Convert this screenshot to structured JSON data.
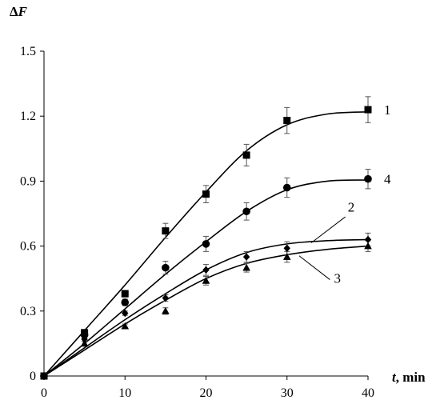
{
  "chart_data": {
    "type": "scatter",
    "xlabel_var": "t",
    "xlabel_unit": ", min",
    "ylabel_delta": "Δ",
    "ylabel_var": "F",
    "xlim": [
      0,
      40
    ],
    "ylim": [
      0,
      1.5
    ],
    "xticks": [
      0,
      10,
      20,
      30,
      40
    ],
    "yticks": [
      0,
      0.3,
      0.6,
      0.9,
      1.2,
      1.5
    ],
    "xtick_labels": [
      "0",
      "10",
      "20",
      "30",
      "40"
    ],
    "ytick_labels": [
      "0",
      "0.3",
      "0.6",
      "0.9",
      "1.2",
      "1.5"
    ],
    "grid": false,
    "legend": "none",
    "series": [
      {
        "label": "1",
        "marker": "square",
        "points": [
          [
            0,
            0
          ],
          [
            5,
            0.2
          ],
          [
            10,
            0.38
          ],
          [
            15,
            0.67
          ],
          [
            20,
            0.84
          ],
          [
            25,
            1.02
          ],
          [
            30,
            1.18
          ],
          [
            40,
            1.23
          ]
        ],
        "errors": [
          0,
          0.015,
          0.015,
          0.035,
          0.04,
          0.05,
          0.06,
          0.06
        ],
        "fit": [
          [
            0,
            0
          ],
          [
            5,
            0.21
          ],
          [
            10,
            0.42
          ],
          [
            15,
            0.64
          ],
          [
            20,
            0.85
          ],
          [
            25,
            1.04
          ],
          [
            30,
            1.16
          ],
          [
            35,
            1.21
          ],
          [
            40,
            1.22
          ]
        ]
      },
      {
        "label": "4",
        "marker": "circle",
        "points": [
          [
            0,
            0
          ],
          [
            5,
            0.19
          ],
          [
            10,
            0.34
          ],
          [
            15,
            0.5
          ],
          [
            20,
            0.61
          ],
          [
            25,
            0.76
          ],
          [
            30,
            0.87
          ],
          [
            40,
            0.91
          ]
        ],
        "errors": [
          0,
          0.015,
          0.015,
          0.03,
          0.035,
          0.04,
          0.045,
          0.045
        ],
        "fit": [
          [
            0,
            0
          ],
          [
            5,
            0.15
          ],
          [
            10,
            0.31
          ],
          [
            15,
            0.47
          ],
          [
            20,
            0.62
          ],
          [
            25,
            0.76
          ],
          [
            30,
            0.86
          ],
          [
            35,
            0.9
          ],
          [
            40,
            0.905
          ]
        ]
      },
      {
        "label": "2",
        "marker": "diamond",
        "points": [
          [
            0,
            0
          ],
          [
            5,
            0.17
          ],
          [
            10,
            0.29
          ],
          [
            15,
            0.36
          ],
          [
            20,
            0.49
          ],
          [
            25,
            0.55
          ],
          [
            30,
            0.59
          ],
          [
            40,
            0.63
          ]
        ],
        "errors": [
          0,
          0.01,
          0.01,
          0.015,
          0.025,
          0.025,
          0.03,
          0.03
        ],
        "fit": [
          [
            0,
            0
          ],
          [
            5,
            0.13
          ],
          [
            10,
            0.26
          ],
          [
            15,
            0.38
          ],
          [
            20,
            0.49
          ],
          [
            25,
            0.57
          ],
          [
            30,
            0.61
          ],
          [
            35,
            0.625
          ],
          [
            40,
            0.63
          ]
        ]
      },
      {
        "label": "3",
        "marker": "triangle",
        "points": [
          [
            0,
            0
          ],
          [
            5,
            0.15
          ],
          [
            10,
            0.23
          ],
          [
            15,
            0.3
          ],
          [
            20,
            0.44
          ],
          [
            25,
            0.5
          ],
          [
            30,
            0.55
          ],
          [
            40,
            0.6
          ]
        ],
        "errors": [
          0,
          0.01,
          0.01,
          0.015,
          0.02,
          0.02,
          0.025,
          0.025
        ],
        "fit": [
          [
            0,
            0
          ],
          [
            5,
            0.12
          ],
          [
            10,
            0.24
          ],
          [
            15,
            0.35
          ],
          [
            20,
            0.45
          ],
          [
            25,
            0.52
          ],
          [
            30,
            0.56
          ],
          [
            35,
            0.585
          ],
          [
            40,
            0.6
          ]
        ]
      }
    ]
  }
}
